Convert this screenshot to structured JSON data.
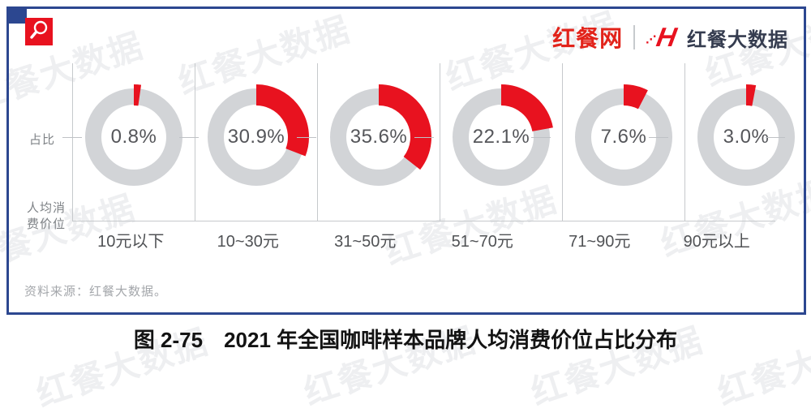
{
  "page": {
    "watermark_text": "红餐大数据"
  },
  "header": {
    "logo_primary": "红餐网",
    "logo_mark_dots": "⋰",
    "logo_mark_letter": "H",
    "logo_secondary": "红餐大数据"
  },
  "chart_data": {
    "type": "pie",
    "subtype": "donut-multiples",
    "title": "2021 年全国咖啡样本品牌人均消费价位占比分布",
    "categories": [
      "10元以下",
      "10~30元",
      "31~50元",
      "51~70元",
      "71~90元",
      "90元以上"
    ],
    "values": [
      0.8,
      30.9,
      35.6,
      22.1,
      7.6,
      3.0
    ],
    "value_labels": [
      "0.8%",
      "30.9%",
      "35.6%",
      "22.1%",
      "7.6%",
      "3.0%"
    ],
    "y_axis_label": "占比",
    "x_axis_label": "人均消费价位",
    "unit": "%",
    "legend": "none",
    "grid": "column-dividers-with-midline-ticks",
    "colors": {
      "ring": "#d2d4d7",
      "value_arc": "#e8121f",
      "grid_line": "#c6c9cc",
      "value_text": "#55565a"
    }
  },
  "footer": {
    "source": "资料来源：红餐大数据。"
  },
  "caption": {
    "figure_number": "图 2-75",
    "title": "2021 年全国咖啡样本品牌人均消费价位占比分布"
  }
}
